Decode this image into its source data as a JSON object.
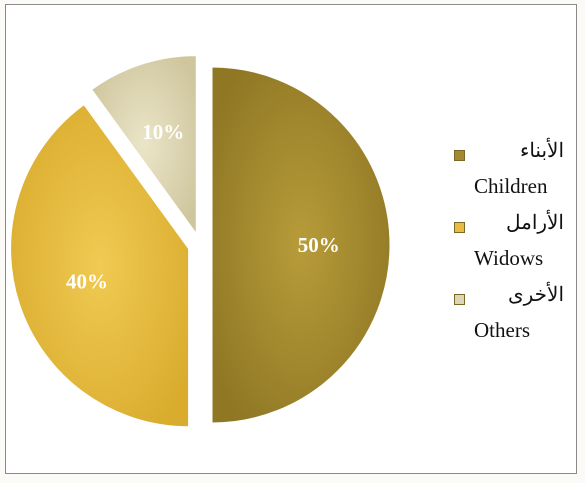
{
  "chart_data": {
    "type": "pie",
    "title": "",
    "labels": [
      "الأبناء Children",
      "الأرامل Widows",
      "الأخرى Others"
    ],
    "values": [
      50,
      40,
      10
    ],
    "value_labels": [
      "50%",
      "40%",
      "10%"
    ],
    "colors": [
      "#a38a2e",
      "#e6bd40",
      "#ddd6b4"
    ],
    "exploded": true,
    "legend_position": "right",
    "legend": [
      {
        "arabic": "الأبناء",
        "english": "Children"
      },
      {
        "arabic": "الأرامل",
        "english": "Widows"
      },
      {
        "arabic": "الأخرى",
        "english": "Others"
      }
    ]
  }
}
